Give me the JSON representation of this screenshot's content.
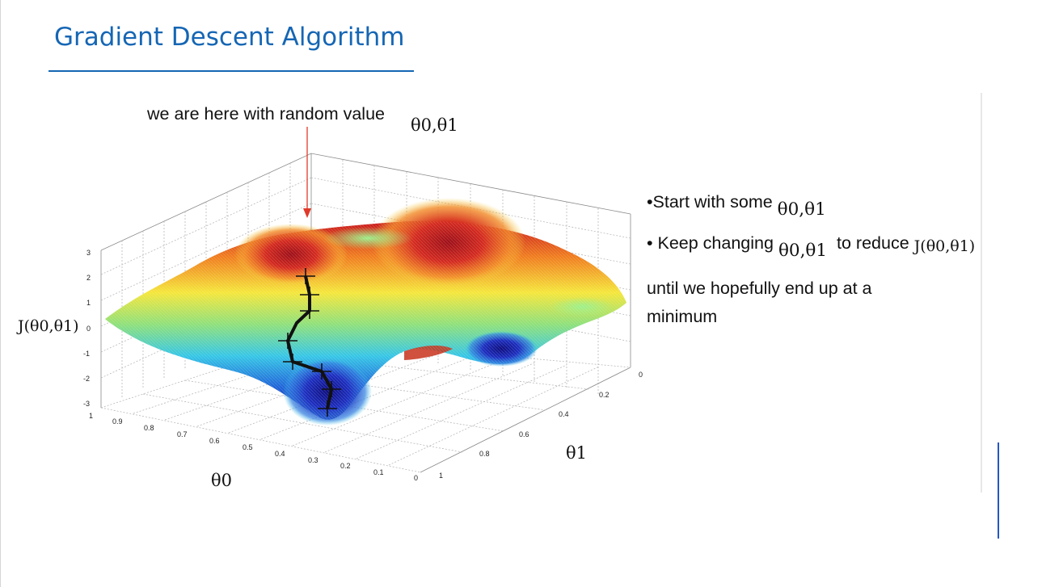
{
  "slide": {
    "title": "Gradient Descent Algorithm"
  },
  "figure": {
    "annotation": "we are here with random value",
    "annotation_math": "θ0,θ1",
    "z_axis_label": "J(θ0,θ1)",
    "x_axis_label": "θ0",
    "y_axis_label": "θ1",
    "z_ticks": [
      "3",
      "2",
      "1",
      "0",
      "-1",
      "-2",
      "-3"
    ],
    "theta0_ticks": [
      "1",
      "0.9",
      "0.8",
      "0.7",
      "0.6",
      "0.5",
      "0.4",
      "0.3",
      "0.2",
      "0.1",
      "0"
    ],
    "theta1_ticks": [
      "0",
      "0.2",
      "0.4",
      "0.6",
      "0.8",
      "1"
    ],
    "colors": {
      "arrow": "#e03a2a",
      "path": "#111111",
      "surface_high": "#c8161c",
      "surface_low": "#1a1aa8"
    }
  },
  "bullets": {
    "line1_text": "•Start with some",
    "line1_math": "θ0,θ1",
    "line2_text": "• Keep changing",
    "line2_math": "θ0,θ1",
    "line2_text_b": "to reduce",
    "line2_math_b": "J(θ0,θ1)",
    "line3": "until we hopefully end up at a",
    "line4": "minimum"
  }
}
